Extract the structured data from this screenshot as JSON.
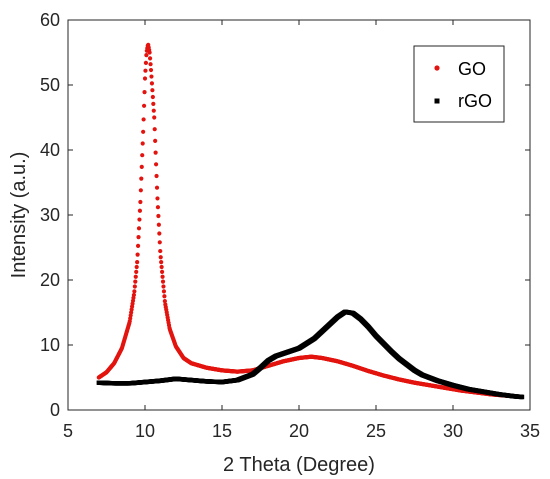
{
  "chart_data": {
    "type": "scatter",
    "title": "",
    "xlabel": "2 Theta (Degree)",
    "ylabel": "Intensity (a.u.)",
    "xlim": [
      5,
      35
    ],
    "ylim": [
      0,
      60
    ],
    "xticks": [
      "5",
      "10",
      "15",
      "20",
      "25",
      "30",
      "35"
    ],
    "yticks": [
      "0",
      "10",
      "20",
      "30",
      "40",
      "50",
      "60"
    ],
    "grid": false,
    "legend_position": "top-right",
    "series": [
      {
        "name": "GO",
        "color": "#e3140f",
        "marker": "dot",
        "points": [
          [
            7.0,
            5.0
          ],
          [
            7.5,
            5.8
          ],
          [
            8.0,
            7.2
          ],
          [
            8.5,
            9.5
          ],
          [
            9.0,
            13.5
          ],
          [
            9.3,
            18.0
          ],
          [
            9.5,
            23.0
          ],
          [
            9.7,
            32.0
          ],
          [
            9.9,
            44.0
          ],
          [
            10.0,
            51.0
          ],
          [
            10.1,
            55.0
          ],
          [
            10.2,
            56.3
          ],
          [
            10.3,
            55.0
          ],
          [
            10.4,
            52.0
          ],
          [
            10.6,
            45.0
          ],
          [
            10.8,
            33.0
          ],
          [
            11.0,
            24.0
          ],
          [
            11.3,
            16.5
          ],
          [
            11.6,
            12.5
          ],
          [
            12.0,
            9.8
          ],
          [
            12.5,
            8.0
          ],
          [
            13.0,
            7.2
          ],
          [
            14.0,
            6.5
          ],
          [
            15.0,
            6.1
          ],
          [
            16.0,
            5.9
          ],
          [
            17.0,
            6.1
          ],
          [
            18.0,
            6.8
          ],
          [
            19.0,
            7.5
          ],
          [
            20.0,
            8.0
          ],
          [
            20.8,
            8.2
          ],
          [
            21.5,
            8.0
          ],
          [
            22.5,
            7.5
          ],
          [
            23.5,
            6.8
          ],
          [
            24.5,
            6.0
          ],
          [
            25.5,
            5.3
          ],
          [
            26.5,
            4.7
          ],
          [
            27.5,
            4.2
          ],
          [
            28.5,
            3.8
          ],
          [
            29.5,
            3.4
          ],
          [
            30.5,
            3.0
          ],
          [
            31.5,
            2.7
          ],
          [
            32.5,
            2.4
          ],
          [
            33.5,
            2.2
          ],
          [
            34.5,
            2.0
          ]
        ]
      },
      {
        "name": "rGO",
        "color": "#000000",
        "marker": "square",
        "points": [
          [
            7.0,
            4.2
          ],
          [
            8.0,
            4.1
          ],
          [
            9.0,
            4.1
          ],
          [
            10.0,
            4.3
          ],
          [
            11.0,
            4.5
          ],
          [
            12.0,
            4.8
          ],
          [
            13.0,
            4.6
          ],
          [
            14.0,
            4.4
          ],
          [
            15.0,
            4.3
          ],
          [
            16.0,
            4.6
          ],
          [
            17.0,
            5.5
          ],
          [
            17.5,
            6.5
          ],
          [
            18.0,
            7.6
          ],
          [
            18.5,
            8.3
          ],
          [
            19.0,
            8.7
          ],
          [
            20.0,
            9.5
          ],
          [
            21.0,
            11.0
          ],
          [
            22.0,
            13.2
          ],
          [
            22.5,
            14.3
          ],
          [
            23.0,
            15.1
          ],
          [
            23.5,
            14.9
          ],
          [
            24.0,
            14.0
          ],
          [
            24.5,
            12.8
          ],
          [
            25.0,
            11.4
          ],
          [
            25.5,
            10.2
          ],
          [
            26.0,
            9.0
          ],
          [
            26.5,
            7.9
          ],
          [
            27.0,
            7.0
          ],
          [
            27.5,
            6.1
          ],
          [
            28.0,
            5.4
          ],
          [
            29.0,
            4.5
          ],
          [
            30.0,
            3.8
          ],
          [
            31.0,
            3.2
          ],
          [
            32.0,
            2.8
          ],
          [
            33.0,
            2.4
          ],
          [
            34.0,
            2.1
          ],
          [
            34.5,
            2.0
          ]
        ]
      }
    ]
  }
}
